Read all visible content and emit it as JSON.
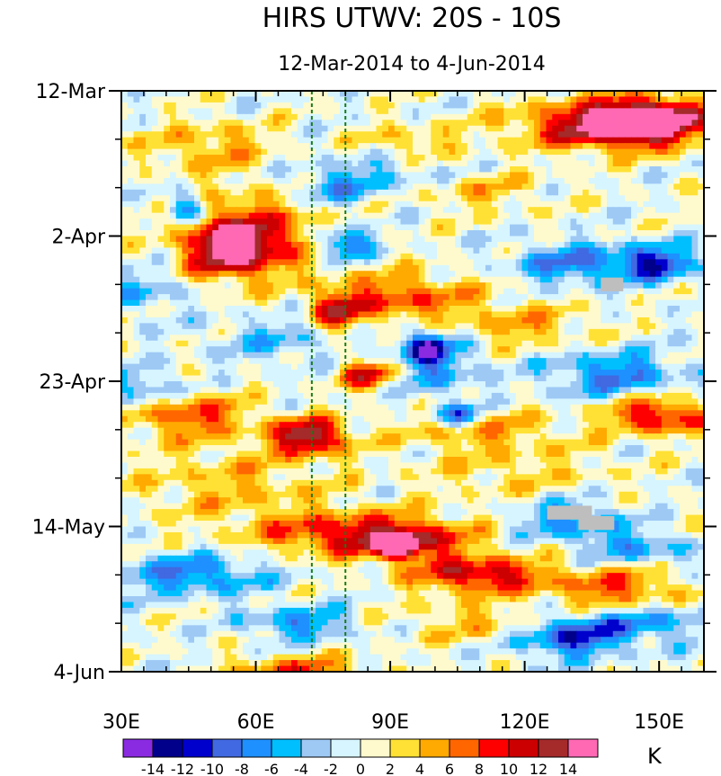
{
  "chart_data": {
    "type": "heatmap",
    "title": "HIRS UTWV: 20S - 10S",
    "subtitle": "12-Mar-2014 to 4-Jun-2014",
    "xlabel": "",
    "ylabel": "",
    "xlim": [
      30,
      160
    ],
    "x_ticks": [
      {
        "value": 30,
        "label": "30E"
      },
      {
        "value": 60,
        "label": "60E"
      },
      {
        "value": 90,
        "label": "90E"
      },
      {
        "value": 120,
        "label": "120E"
      },
      {
        "value": 150,
        "label": "150E"
      }
    ],
    "y_ticks": [
      {
        "day": 0,
        "label": "12-Mar"
      },
      {
        "day": 21,
        "label": "2-Apr"
      },
      {
        "day": 42,
        "label": "23-Apr"
      },
      {
        "day": 63,
        "label": "14-May"
      },
      {
        "day": 84,
        "label": "4-Jun"
      }
    ],
    "y_range_days": [
      0,
      84
    ],
    "reference_lines_lon": [
      72.5,
      80
    ],
    "colorbar": {
      "unit": "K",
      "levels": [
        -14,
        -12,
        -10,
        -8,
        -6,
        -4,
        -2,
        0,
        2,
        4,
        6,
        8,
        10,
        12,
        14
      ],
      "labels": [
        "-14",
        "-12",
        "-10",
        "-8",
        "-6",
        "-4",
        "-2",
        "0",
        "2",
        "4",
        "6",
        "8",
        "10",
        "12",
        "14"
      ],
      "colors": [
        "#8a2be2",
        "#00008b",
        "#0000cd",
        "#4169e1",
        "#1e90ff",
        "#00bfff",
        "#9ec9f5",
        "#d6f5ff",
        "#fffacd",
        "#ffe135",
        "#ffaa00",
        "#ff6600",
        "#ff0000",
        "#cc0000",
        "#a52a2a",
        "#ff69b4"
      ]
    },
    "missing_color": "#bebebe",
    "features": [
      {
        "lon": 140,
        "day": 5,
        "value": 15,
        "sx": 14,
        "sy": 2.4
      },
      {
        "lon": 148,
        "day": 4,
        "value": 12,
        "sx": 8,
        "sy": 2
      },
      {
        "lon": 55,
        "day": 23,
        "value": 14,
        "sx": 7,
        "sy": 2.8
      },
      {
        "lon": 60,
        "day": 20,
        "value": 7,
        "sx": 12,
        "sy": 4
      },
      {
        "lon": 44,
        "day": 17,
        "value": -10,
        "sx": 3,
        "sy": 1.5
      },
      {
        "lon": 80,
        "day": 22,
        "value": -11,
        "sx": 4,
        "sy": 1.6
      },
      {
        "lon": 78,
        "day": 14,
        "value": -6,
        "sx": 8,
        "sy": 2
      },
      {
        "lon": 95,
        "day": 11,
        "value": -4,
        "sx": 12,
        "sy": 2
      },
      {
        "lon": 50,
        "day": 8,
        "value": 5,
        "sx": 10,
        "sy": 2.5
      },
      {
        "lon": 95,
        "day": 8,
        "value": 5,
        "sx": 8,
        "sy": 2
      },
      {
        "lon": 110,
        "day": 14,
        "value": 4,
        "sx": 10,
        "sy": 2.5
      },
      {
        "lon": 92,
        "day": 30,
        "value": 8,
        "sx": 12,
        "sy": 2.5
      },
      {
        "lon": 78,
        "day": 32,
        "value": 9,
        "sx": 4,
        "sy": 2
      },
      {
        "lon": 98,
        "day": 37,
        "value": -11,
        "sx": 3.5,
        "sy": 1.6
      },
      {
        "lon": 100,
        "day": 40,
        "value": -6,
        "sx": 7,
        "sy": 3
      },
      {
        "lon": 85,
        "day": 41,
        "value": 10,
        "sx": 5,
        "sy": 1.5
      },
      {
        "lon": 132,
        "day": 25,
        "value": -8,
        "sx": 10,
        "sy": 2
      },
      {
        "lon": 150,
        "day": 25,
        "value": -10,
        "sx": 6,
        "sy": 1.8
      },
      {
        "lon": 140,
        "day": 41,
        "value": -8,
        "sx": 10,
        "sy": 2.2
      },
      {
        "lon": 120,
        "day": 34,
        "value": 5,
        "sx": 10,
        "sy": 2
      },
      {
        "lon": 150,
        "day": 47,
        "value": 11,
        "sx": 8,
        "sy": 1.8
      },
      {
        "lon": 45,
        "day": 47,
        "value": 8,
        "sx": 10,
        "sy": 2.2
      },
      {
        "lon": 72,
        "day": 50,
        "value": 14,
        "sx": 6,
        "sy": 1.8
      },
      {
        "lon": 110,
        "day": 49,
        "value": 5,
        "sx": 12,
        "sy": 2
      },
      {
        "lon": 105,
        "day": 47,
        "value": -9,
        "sx": 4,
        "sy": 1.2
      },
      {
        "lon": 55,
        "day": 57,
        "value": 4,
        "sx": 15,
        "sy": 4
      },
      {
        "lon": 80,
        "day": 64,
        "value": 9,
        "sx": 14,
        "sy": 2.2
      },
      {
        "lon": 95,
        "day": 65,
        "value": 8,
        "sx": 10,
        "sy": 2
      },
      {
        "lon": 92,
        "day": 66,
        "value": 12,
        "sx": 3,
        "sy": 1.2
      },
      {
        "lon": 110,
        "day": 70,
        "value": 12,
        "sx": 10,
        "sy": 1.8
      },
      {
        "lon": 140,
        "day": 72,
        "value": 8,
        "sx": 10,
        "sy": 2
      },
      {
        "lon": 130,
        "day": 62,
        "value": -7,
        "sx": 8,
        "sy": 2
      },
      {
        "lon": 145,
        "day": 66,
        "value": -6,
        "sx": 8,
        "sy": 1.6
      },
      {
        "lon": 130,
        "day": 79,
        "value": -11,
        "sx": 8,
        "sy": 2
      },
      {
        "lon": 148,
        "day": 77,
        "value": -6,
        "sx": 10,
        "sy": 1.8
      },
      {
        "lon": 45,
        "day": 70,
        "value": -8,
        "sx": 12,
        "sy": 2
      },
      {
        "lon": 70,
        "day": 77,
        "value": -7,
        "sx": 8,
        "sy": 1.6
      },
      {
        "lon": 35,
        "day": 43,
        "value": -6,
        "sx": 5,
        "sy": 2
      },
      {
        "lon": 35,
        "day": 29,
        "value": -5,
        "sx": 6,
        "sy": 2
      },
      {
        "lon": 70,
        "day": 84,
        "value": 8,
        "sx": 10,
        "sy": 1.5
      },
      {
        "lon": 110,
        "day": 77,
        "value": 4,
        "sx": 12,
        "sy": 2
      },
      {
        "lon": 65,
        "day": 36,
        "value": -4,
        "sx": 10,
        "sy": 2.5
      },
      {
        "lon": 118,
        "day": 55,
        "value": 3,
        "sx": 15,
        "sy": 3
      }
    ],
    "missing_boxes": [
      {
        "lon0": 137,
        "lon1": 142,
        "day0": 27,
        "day1": 29
      },
      {
        "lon0": 125,
        "lon1": 135,
        "day0": 60,
        "day1": 62
      },
      {
        "lon0": 132,
        "lon1": 140,
        "day0": 61.5,
        "day1": 63.5
      }
    ]
  }
}
